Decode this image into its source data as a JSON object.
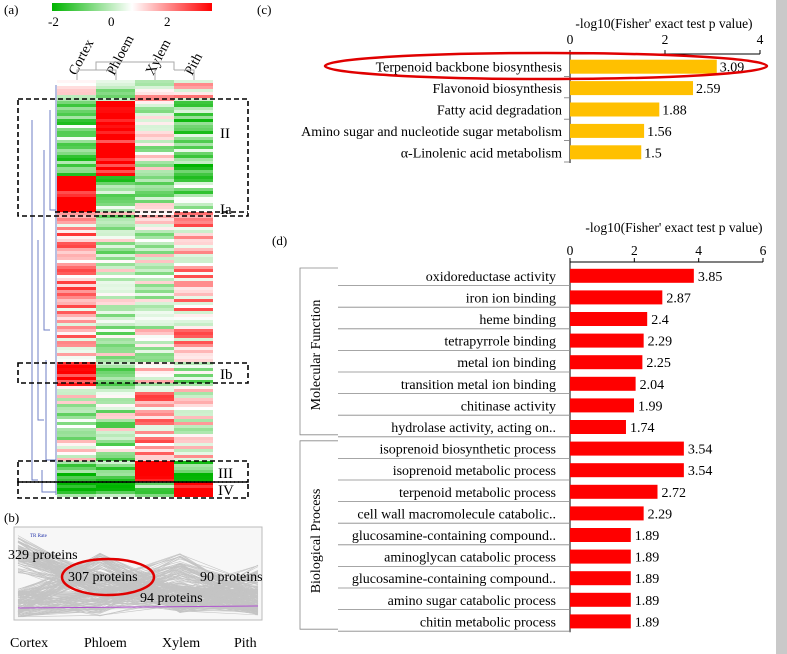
{
  "panels": {
    "a": {
      "label": "(a)",
      "scale_ticks": [
        "-2",
        "0",
        "2"
      ],
      "columns": [
        "Cortex",
        "Phloem",
        "Xylem",
        "Pith"
      ],
      "clusters": [
        "II",
        "Ia",
        "Ib",
        "III",
        "IV"
      ],
      "colors": {
        "low": "#00b400",
        "mid": "#ffffff",
        "high": "#ff0000"
      }
    },
    "b": {
      "label": "(b)",
      "legend_box": "TR Rate",
      "columns": [
        "Cortex",
        "Phloem",
        "Xylem",
        "Pith"
      ],
      "annotations": [
        "329 proteins",
        "307 proteins",
        "94 proteins",
        "90 proteins"
      ]
    },
    "c": {
      "label": "(c)"
    },
    "d": {
      "label": "(d)"
    }
  },
  "chart_data": [
    {
      "panel": "c",
      "type": "bar",
      "orientation": "horizontal",
      "xlabel": "-log10(Fisher' exact test p value)",
      "xlim": [
        0,
        4
      ],
      "xticks": [
        0,
        2,
        4
      ],
      "categories": [
        "Terpenoid backbone biosynthesis",
        "Flavonoid biosynthesis",
        "Fatty acid degradation",
        "Amino sugar and nucleotide sugar metabolism",
        "α-Linolenic acid metabolism"
      ],
      "values": [
        3.09,
        2.59,
        1.88,
        1.56,
        1.5
      ],
      "value_labels": [
        "3.09",
        "2.59",
        "1.88",
        "1.56",
        "1.5"
      ],
      "bar_color": "#ffc000",
      "highlight": "Terpenoid backbone biosynthesis"
    },
    {
      "panel": "d",
      "type": "bar",
      "orientation": "horizontal",
      "xlabel": "-log10(Fisher' exact test p value)",
      "xlim": [
        0,
        6
      ],
      "xticks": [
        0,
        2,
        4,
        6
      ],
      "bar_color": "#ff0000",
      "groups": [
        {
          "name": "Molecular Function",
          "categories": [
            "oxidoreductase activity",
            "iron ion binding",
            "heme binding",
            "tetrapyrrole binding",
            "metal ion binding",
            "transition metal ion binding",
            "chitinase activity",
            "hydrolase activity, acting on.."
          ],
          "values": [
            3.85,
            2.87,
            2.4,
            2.29,
            2.25,
            2.04,
            1.99,
            1.74
          ],
          "value_labels": [
            "3.85",
            "2.87",
            "2.4",
            "2.29",
            "2.25",
            "2.04",
            "1.99",
            "1.74"
          ]
        },
        {
          "name": "Biological Process",
          "categories": [
            "isoprenoid biosynthetic process",
            "isoprenoid metabolic process",
            "terpenoid metabolic process",
            "cell wall macromolecule catabolic..",
            "glucosamine-containing compound..",
            "aminoglycan catabolic process",
            "glucosamine-containing compound..",
            "amino sugar catabolic process",
            "chitin metabolic process"
          ],
          "values": [
            3.54,
            3.54,
            2.72,
            2.29,
            1.89,
            1.89,
            1.89,
            1.89,
            1.89
          ],
          "value_labels": [
            "3.54",
            "3.54",
            "2.72",
            "2.29",
            "1.89",
            "1.89",
            "1.89",
            "1.89",
            "1.89"
          ]
        }
      ]
    }
  ]
}
